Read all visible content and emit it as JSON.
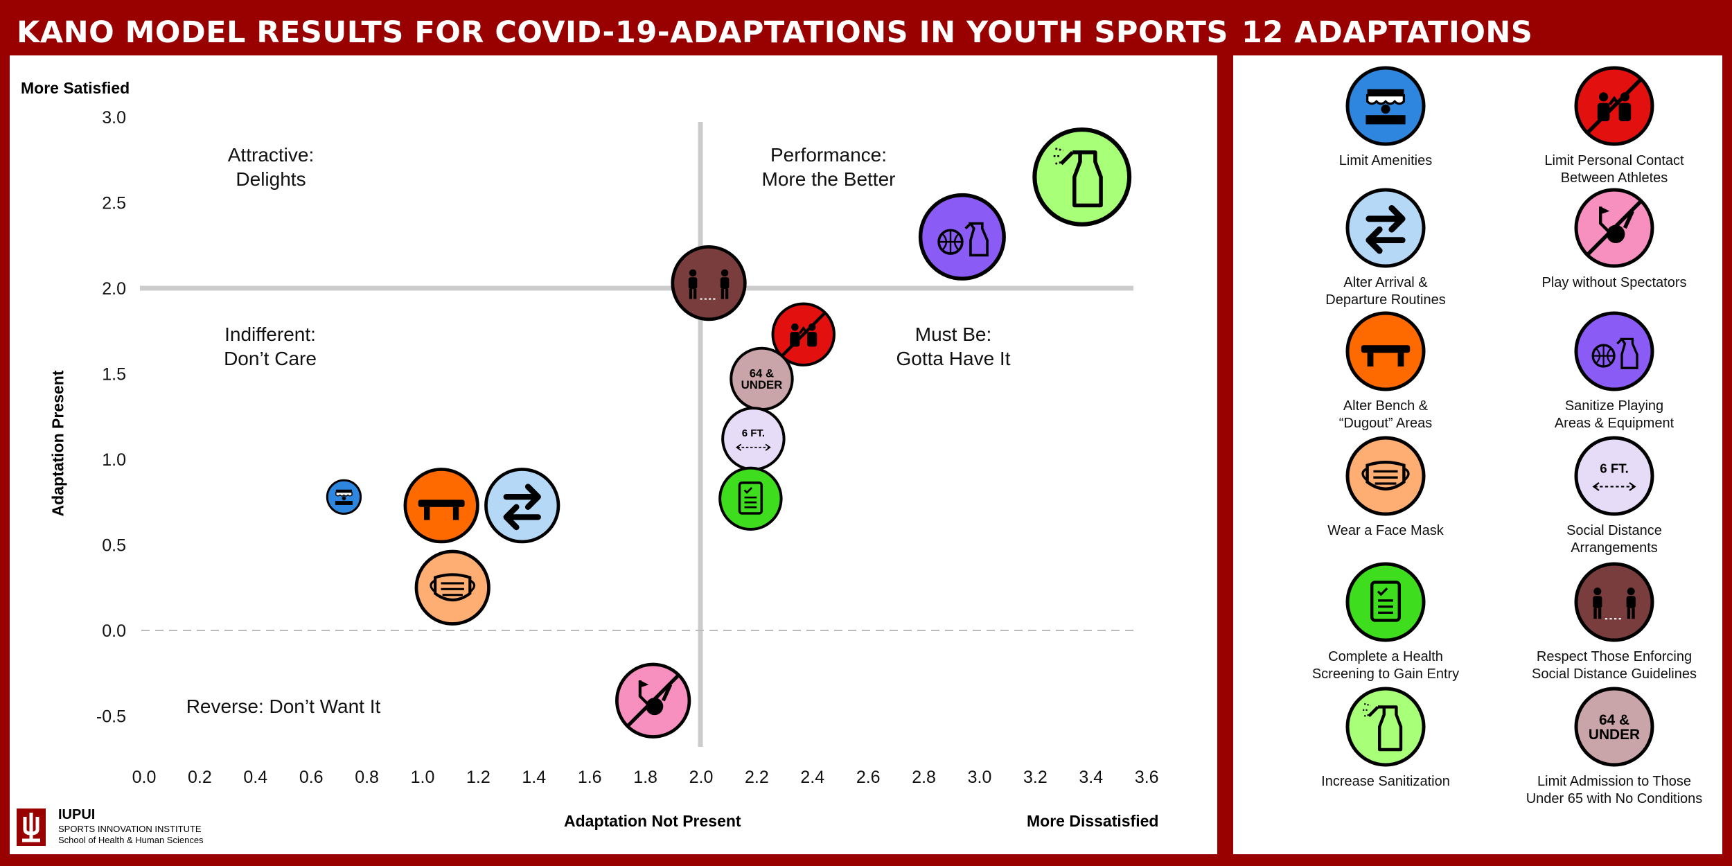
{
  "header": {
    "title": "KANO MODEL RESULTS FOR COVID-19-ADAPTATIONS IN YOUTH SPORTS",
    "legend_title": "12 ADAPTATIONS"
  },
  "axes": {
    "top_left": "More Satisfied",
    "y_title": "Adaptation Present",
    "x_title": "Adaptation Not Present",
    "bottom_right": "More Dissatisfied"
  },
  "quadrants": {
    "attractive": [
      "Attractive:",
      "Delights"
    ],
    "performance": [
      "Performance:",
      "More the Better"
    ],
    "indifferent": [
      "Indifferent:",
      "Don’t Care"
    ],
    "must_be": [
      "Must Be:",
      "Gotta Have It"
    ],
    "reverse": [
      "Reverse: Don’t Want It"
    ]
  },
  "logo": {
    "name": "IUPUI",
    "line1": "SPORTS INNOVATION INSTITUTE",
    "line2": "School of Health & Human Sciences"
  },
  "colors": {
    "brand": "#990000",
    "limit_amenities": "#2e86de",
    "limit_contact": "#e31010",
    "alter_arrival": "#b5d8f7",
    "no_spectators": "#f78fbf",
    "alter_bench": "#ff6a00",
    "sanitize_equipment": "#8a5cf5",
    "face_mask": "#ffae73",
    "social_distance": "#e6dcf7",
    "health_screening": "#3ede1f",
    "respect_enforcing": "#7a3d3d",
    "increase_sanitization": "#a8ff78",
    "limit_admission": "#c9a4a8"
  },
  "chart_data": {
    "type": "scatter",
    "title": "KANO MODEL RESULTS FOR COVID-19-ADAPTATIONS IN YOUTH SPORTS",
    "xlabel": "Adaptation Not Present",
    "ylabel": "Adaptation Present",
    "xlim": [
      0.0,
      3.6
    ],
    "ylim": [
      -0.6,
      3.0
    ],
    "x_ticks": [
      "0.0",
      "0.2",
      "0.4",
      "0.6",
      "0.8",
      "1.0",
      "1.2",
      "1.4",
      "1.6",
      "1.8",
      "2.0",
      "2.2",
      "2.4",
      "2.6",
      "2.8",
      "3.0",
      "3.2",
      "3.4",
      "3.6"
    ],
    "y_ticks": [
      "3.0",
      "2.5",
      "2.0",
      "1.5",
      "1.0",
      "0.5",
      "0.0",
      "-0.5"
    ],
    "y_tick_values": [
      3.0,
      2.5,
      2.0,
      1.5,
      1.0,
      0.5,
      0.0,
      -0.5
    ],
    "reference_lines": {
      "x": 2.0,
      "y": 2.0,
      "dashed_y": 0.0
    },
    "grid": false,
    "series": [
      {
        "key": "limit_amenities",
        "icon": "storefront-icon",
        "x": 0.72,
        "y": 0.78,
        "r": 0.06
      },
      {
        "key": "alter_bench",
        "icon": "bench-icon",
        "x": 1.07,
        "y": 0.73,
        "r": 0.13
      },
      {
        "key": "alter_arrival",
        "icon": "arrows-icon",
        "x": 1.36,
        "y": 0.73,
        "r": 0.13
      },
      {
        "key": "face_mask",
        "icon": "mask-icon",
        "x": 1.11,
        "y": 0.25,
        "r": 0.13
      },
      {
        "key": "no_spectators",
        "icon": "no-spectators-icon",
        "x": 1.83,
        "y": -0.41,
        "r": 0.13
      },
      {
        "key": "respect_enforcing",
        "icon": "distancing-people-icon",
        "x": 2.03,
        "y": 2.03,
        "r": 0.13
      },
      {
        "key": "limit_contact",
        "icon": "no-contact-icon",
        "x": 2.37,
        "y": 1.73,
        "r": 0.11
      },
      {
        "key": "limit_admission",
        "icon": "age-badge-icon",
        "x": 2.22,
        "y": 1.47,
        "r": 0.11,
        "text": [
          "64 &",
          "UNDER"
        ]
      },
      {
        "key": "social_distance",
        "icon": "six-feet-icon",
        "x": 2.19,
        "y": 1.12,
        "r": 0.11,
        "text": [
          "6 FT."
        ]
      },
      {
        "key": "health_screening",
        "icon": "checklist-icon",
        "x": 2.18,
        "y": 0.77,
        "r": 0.11
      },
      {
        "key": "sanitize_equipment",
        "icon": "ball-spray-icon",
        "x": 2.94,
        "y": 2.3,
        "r": 0.15
      },
      {
        "key": "increase_sanitization",
        "icon": "spray-bottle-icon",
        "x": 3.37,
        "y": 2.65,
        "r": 0.17
      }
    ]
  },
  "legend": [
    {
      "key": "limit_amenities",
      "icon": "storefront-icon",
      "lines": [
        "Limit Amenities"
      ]
    },
    {
      "key": "limit_contact",
      "icon": "no-contact-icon",
      "lines": [
        "Limit Personal Contact",
        "Between Athletes"
      ]
    },
    {
      "key": "alter_arrival",
      "icon": "arrows-icon",
      "lines": [
        "Alter Arrival &",
        "Departure Routines"
      ]
    },
    {
      "key": "no_spectators",
      "icon": "no-spectators-icon",
      "lines": [
        "Play without Spectators"
      ]
    },
    {
      "key": "alter_bench",
      "icon": "bench-icon",
      "lines": [
        "Alter Bench &",
        "“Dugout” Areas"
      ]
    },
    {
      "key": "sanitize_equipment",
      "icon": "ball-spray-icon",
      "lines": [
        "Sanitize Playing",
        "Areas & Equipment"
      ]
    },
    {
      "key": "face_mask",
      "icon": "mask-icon",
      "lines": [
        "Wear a Face Mask"
      ]
    },
    {
      "key": "social_distance",
      "icon": "six-feet-icon",
      "lines": [
        "Social Distance",
        "Arrangements"
      ],
      "text": [
        "6 FT."
      ]
    },
    {
      "key": "health_screening",
      "icon": "checklist-icon",
      "lines": [
        "Complete a Health",
        "Screening to Gain Entry"
      ]
    },
    {
      "key": "respect_enforcing",
      "icon": "distancing-people-icon",
      "lines": [
        "Respect Those Enforcing",
        "Social Distance Guidelines"
      ]
    },
    {
      "key": "increase_sanitization",
      "icon": "spray-bottle-icon",
      "lines": [
        "Increase Sanitization"
      ]
    },
    {
      "key": "limit_admission",
      "icon": "age-badge-icon",
      "lines": [
        "Limit Admission to Those",
        "Under 65 with No Conditions"
      ],
      "text": [
        "64 &",
        "UNDER"
      ]
    }
  ]
}
